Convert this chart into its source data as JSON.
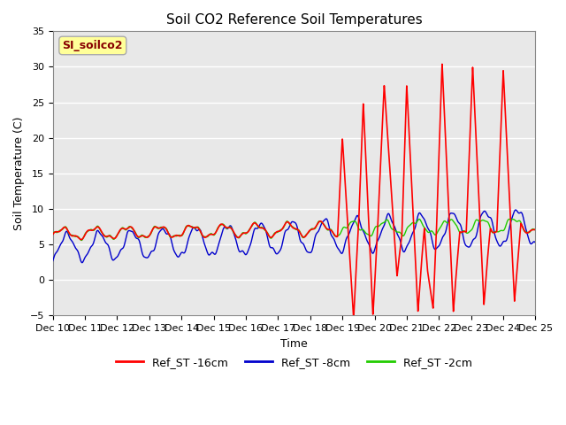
{
  "title": "Soil CO2 Reference Soil Temperatures",
  "xlabel": "Time",
  "ylabel": "Soil Temperature (C)",
  "ylim": [
    -5,
    35
  ],
  "xlim": [
    0,
    15
  ],
  "x_tick_labels": [
    "Dec 10",
    "Dec 11",
    "Dec 12",
    "Dec 13",
    "Dec 14",
    "Dec 15",
    "Dec 16",
    "Dec 17",
    "Dec 18",
    "Dec 19",
    "Dec 20",
    "Dec 21",
    "Dec 22",
    "Dec 23",
    "Dec 24",
    "Dec 25"
  ],
  "yticks": [
    -5,
    0,
    5,
    10,
    15,
    20,
    25,
    30,
    35
  ],
  "station_label": "SI_soilco2",
  "station_label_bg": "#FFFF99",
  "station_label_edge": "#AAAAAA",
  "station_label_text_color": "#880000",
  "bg_color": "#E8E8E8",
  "line_red": "#FF0000",
  "line_blue": "#0000CC",
  "line_green": "#22CC00",
  "legend_labels": [
    "Ref_ST -16cm",
    "Ref_ST -8cm",
    "Ref_ST -2cm"
  ],
  "legend_colors": [
    "#FF0000",
    "#0000CC",
    "#22CC00"
  ],
  "title_fontsize": 11,
  "axis_label_fontsize": 9,
  "tick_fontsize": 8
}
